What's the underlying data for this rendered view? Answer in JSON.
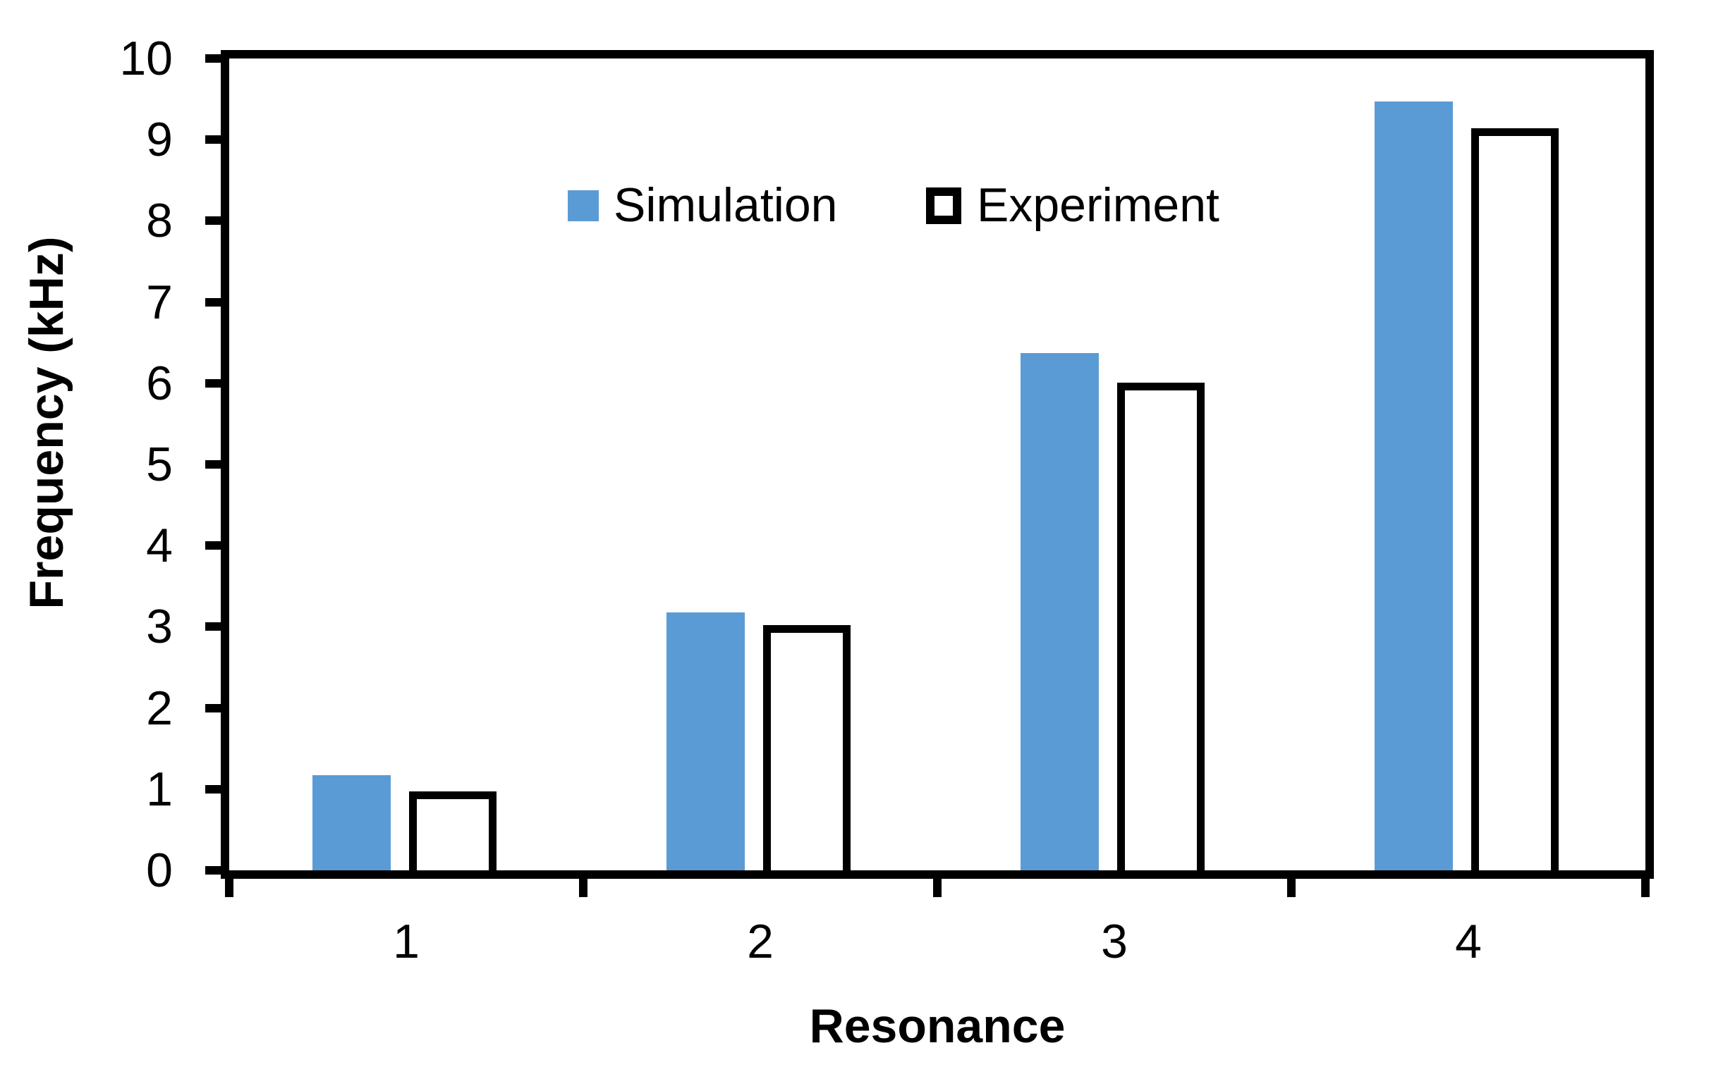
{
  "chart_data": {
    "type": "bar",
    "title": "",
    "categories": [
      "1",
      "2",
      "3",
      "4"
    ],
    "series": [
      {
        "name": "Simulation",
        "values": [
          1.17,
          3.18,
          6.37,
          9.47
        ],
        "fill": "#5B9BD5",
        "stroke": "none"
      },
      {
        "name": "Experiment",
        "values": [
          0.97,
          3.02,
          6.01,
          9.14
        ],
        "fill": "#FFFFFF",
        "stroke": "#000000"
      }
    ],
    "xlabel": "Resonance",
    "ylabel": "Frequency (kHz)",
    "ylim": [
      0,
      10
    ],
    "y_tick_step": 1,
    "y_tick_labels": [
      "0",
      "1",
      "2",
      "3",
      "4",
      "5",
      "6",
      "7",
      "8",
      "9",
      "10"
    ],
    "grid": false,
    "legend_position": "inside-top-left",
    "colors": {
      "axis": "#000000",
      "background": "#FFFFFF"
    }
  }
}
